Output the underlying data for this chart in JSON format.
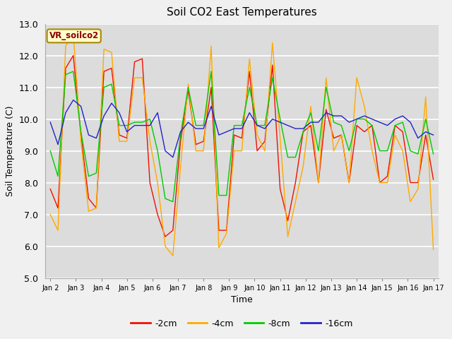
{
  "title": "Soil CO2 East Temperatures",
  "xlabel": "Time",
  "ylabel": "Soil Temperature (C)",
  "ylim": [
    5.0,
    13.0
  ],
  "yticks": [
    5.0,
    6.0,
    7.0,
    8.0,
    9.0,
    10.0,
    11.0,
    12.0,
    13.0
  ],
  "label_text": "VR_soilco2",
  "plot_bg": "#dcdcdc",
  "fig_bg": "#f0f0f0",
  "legend": [
    "-2cm",
    "-4cm",
    "-8cm",
    "-16cm"
  ],
  "line_colors": [
    "#ee1100",
    "#ffaa00",
    "#00cc00",
    "#2222cc"
  ],
  "xtick_labels": [
    "Jan 2",
    "Jan 3",
    "Jan 4",
    "Jan 5",
    "Jan 6",
    "Jan 7",
    "Jan 8",
    "Jan 9",
    "Jan 10",
    "Jan 11",
    "Jan 12",
    "Jan 13",
    "Jan 14",
    "Jan 15",
    "Jan 16",
    "Jan 17"
  ],
  "t_2cm": [
    7.8,
    7.2,
    11.6,
    12.0,
    9.5,
    7.5,
    7.2,
    11.5,
    11.6,
    9.5,
    9.4,
    11.8,
    11.9,
    8.0,
    7.0,
    6.3,
    6.5,
    9.3,
    10.9,
    9.2,
    9.3,
    11.0,
    6.5,
    6.5,
    9.5,
    9.4,
    11.5,
    9.0,
    9.3,
    11.7,
    7.8,
    6.8,
    8.0,
    9.6,
    9.8,
    8.0,
    10.3,
    9.4,
    9.5,
    8.0,
    9.8,
    9.6,
    9.8,
    8.0,
    8.2,
    9.8,
    9.6,
    8.0,
    8.0,
    9.5,
    8.1
  ],
  "t_4cm": [
    7.0,
    6.5,
    12.3,
    12.7,
    9.3,
    7.1,
    7.2,
    12.2,
    12.1,
    9.3,
    9.3,
    11.3,
    11.3,
    9.3,
    8.0,
    6.0,
    5.7,
    8.5,
    11.1,
    9.0,
    9.0,
    12.3,
    5.95,
    6.4,
    9.0,
    9.0,
    11.9,
    9.5,
    9.0,
    12.4,
    9.4,
    6.3,
    7.4,
    8.5,
    10.4,
    8.0,
    11.3,
    9.0,
    9.5,
    8.0,
    11.3,
    10.4,
    9.0,
    8.0,
    8.0,
    9.5,
    9.0,
    7.4,
    7.8,
    10.7,
    5.9
  ],
  "t_8cm": [
    9.0,
    8.2,
    11.4,
    11.5,
    9.6,
    8.2,
    8.3,
    11.0,
    11.1,
    9.8,
    9.8,
    9.9,
    9.9,
    10.0,
    9.0,
    7.5,
    7.4,
    9.5,
    11.0,
    9.8,
    9.8,
    11.5,
    7.6,
    7.6,
    9.8,
    9.8,
    11.0,
    9.8,
    9.8,
    11.3,
    10.0,
    8.8,
    8.8,
    9.6,
    10.2,
    9.0,
    11.0,
    9.9,
    9.8,
    9.0,
    10.0,
    10.0,
    9.8,
    9.0,
    9.0,
    9.8,
    9.9,
    9.0,
    8.9,
    10.0,
    8.9
  ],
  "t_16cm": [
    9.9,
    9.2,
    10.2,
    10.6,
    10.4,
    9.5,
    9.4,
    10.1,
    10.5,
    10.2,
    9.6,
    9.8,
    9.8,
    9.8,
    10.2,
    9.0,
    8.8,
    9.6,
    9.9,
    9.7,
    9.7,
    10.4,
    9.5,
    9.6,
    9.7,
    9.7,
    10.2,
    9.8,
    9.7,
    10.0,
    9.9,
    9.8,
    9.7,
    9.7,
    9.9,
    9.9,
    10.2,
    10.1,
    10.1,
    9.9,
    10.0,
    10.1,
    10.0,
    9.9,
    9.8,
    10.0,
    10.1,
    9.9,
    9.4,
    9.6,
    9.5
  ]
}
